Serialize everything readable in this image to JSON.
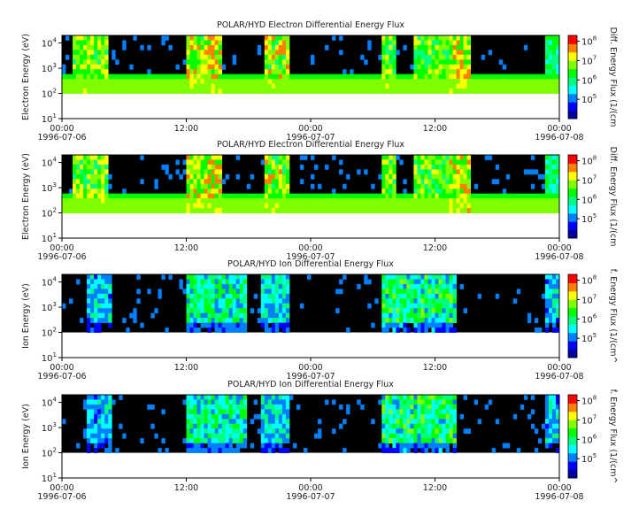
{
  "chart_data": [
    {
      "type": "heatmap",
      "title": "POLAR/HYD  Electron Differential Energy Flux",
      "ylabel": "Electron Energy (eV)",
      "colorbar_label": "Diff. Energy Flux (1/(cm",
      "yscale": "log",
      "ylim": [
        10,
        20000
      ],
      "data_ylim": [
        100,
        20000
      ],
      "y_ticks": [
        {
          "b": "10",
          "e": "1",
          "v": 10
        },
        {
          "b": "10",
          "e": "2",
          "v": 100
        },
        {
          "b": "10",
          "e": "3",
          "v": 1000
        },
        {
          "b": "10",
          "e": "4",
          "v": 10000
        }
      ],
      "x_ticks": [
        "00:00",
        "12:00",
        "00:00",
        "12:00",
        "00:00"
      ],
      "x_dates": [
        "1996-07-06",
        "1996-07-07",
        "1996-07-08"
      ],
      "colorbar_ticks": [
        {
          "b": "10",
          "e": "5",
          "v": 100000
        },
        {
          "b": "10",
          "e": "6",
          "v": 1000000
        },
        {
          "b": "10",
          "e": "7",
          "v": 10000000
        },
        {
          "b": "10",
          "e": "8",
          "v": 100000000
        }
      ],
      "colorbar_range": [
        10000,
        200000000
      ],
      "kind": "electron"
    },
    {
      "type": "heatmap",
      "title": "POLAR/HYD  Electron Differential Energy Flux",
      "ylabel": "Electron Energy (eV)",
      "colorbar_label": "Diff. Energy Flux (1/(cm",
      "yscale": "log",
      "ylim": [
        10,
        20000
      ],
      "data_ylim": [
        100,
        20000
      ],
      "y_ticks": [
        {
          "b": "10",
          "e": "1",
          "v": 10
        },
        {
          "b": "10",
          "e": "2",
          "v": 100
        },
        {
          "b": "10",
          "e": "3",
          "v": 1000
        },
        {
          "b": "10",
          "e": "4",
          "v": 10000
        }
      ],
      "x_ticks": [
        "00:00",
        "12:00",
        "00:00",
        "12:00",
        "00:00"
      ],
      "x_dates": [
        "1996-07-06",
        "1996-07-07",
        "1996-07-08"
      ],
      "colorbar_ticks": [
        {
          "b": "10",
          "e": "5",
          "v": 100000
        },
        {
          "b": "10",
          "e": "6",
          "v": 1000000
        },
        {
          "b": "10",
          "e": "7",
          "v": 10000000
        },
        {
          "b": "10",
          "e": "8",
          "v": 100000000
        }
      ],
      "colorbar_range": [
        10000,
        200000000
      ],
      "kind": "electron"
    },
    {
      "type": "heatmap",
      "title": "POLAR/HYD  Ion Differential Energy Flux",
      "ylabel": "Ion Energy (eV)",
      "colorbar_label": "f. Energy Flux (1/(cm^",
      "yscale": "log",
      "ylim": [
        10,
        20000
      ],
      "data_ylim": [
        100,
        20000
      ],
      "y_ticks": [
        {
          "b": "10",
          "e": "1",
          "v": 10
        },
        {
          "b": "10",
          "e": "2",
          "v": 100
        },
        {
          "b": "10",
          "e": "3",
          "v": 1000
        },
        {
          "b": "10",
          "e": "4",
          "v": 10000
        }
      ],
      "x_ticks": [
        "00:00",
        "12:00",
        "00:00",
        "12:00",
        "00:00"
      ],
      "x_dates": [
        "1996-07-06",
        "1996-07-07",
        "1996-07-08"
      ],
      "colorbar_ticks": [
        {
          "b": "10",
          "e": "5",
          "v": 100000
        },
        {
          "b": "10",
          "e": "6",
          "v": 1000000
        },
        {
          "b": "10",
          "e": "7",
          "v": 10000000
        },
        {
          "b": "10",
          "e": "8",
          "v": 100000000
        }
      ],
      "colorbar_range": [
        10000,
        200000000
      ],
      "kind": "ion"
    },
    {
      "type": "heatmap",
      "title": "POLAR/HYD  Ion Differential Energy Flux",
      "ylabel": "Ion Energy (eV)",
      "colorbar_label": "f. Energy Flux (1/(cm^",
      "yscale": "log",
      "ylim": [
        10,
        20000
      ],
      "data_ylim": [
        100,
        20000
      ],
      "y_ticks": [
        {
          "b": "10",
          "e": "1",
          "v": 10
        },
        {
          "b": "10",
          "e": "2",
          "v": 100
        },
        {
          "b": "10",
          "e": "3",
          "v": 1000
        },
        {
          "b": "10",
          "e": "4",
          "v": 10000
        }
      ],
      "x_ticks": [
        "00:00",
        "12:00",
        "00:00",
        "12:00",
        "00:00"
      ],
      "x_dates": [
        "1996-07-06",
        "1996-07-07",
        "1996-07-08"
      ],
      "colorbar_ticks": [
        {
          "b": "10",
          "e": "5",
          "v": 100000
        },
        {
          "b": "10",
          "e": "6",
          "v": 1000000
        },
        {
          "b": "10",
          "e": "7",
          "v": 10000000
        },
        {
          "b": "10",
          "e": "8",
          "v": 100000000
        }
      ],
      "colorbar_range": [
        10000,
        200000000
      ],
      "kind": "ion"
    }
  ],
  "colors": {
    "background": "#ffffff",
    "plot_fill": "#000000",
    "colormap": [
      "#0000a0",
      "#0000ff",
      "#0080ff",
      "#00ffff",
      "#00ff80",
      "#00ff00",
      "#80ff00",
      "#ffff00",
      "#ff8000",
      "#ff0000"
    ]
  }
}
